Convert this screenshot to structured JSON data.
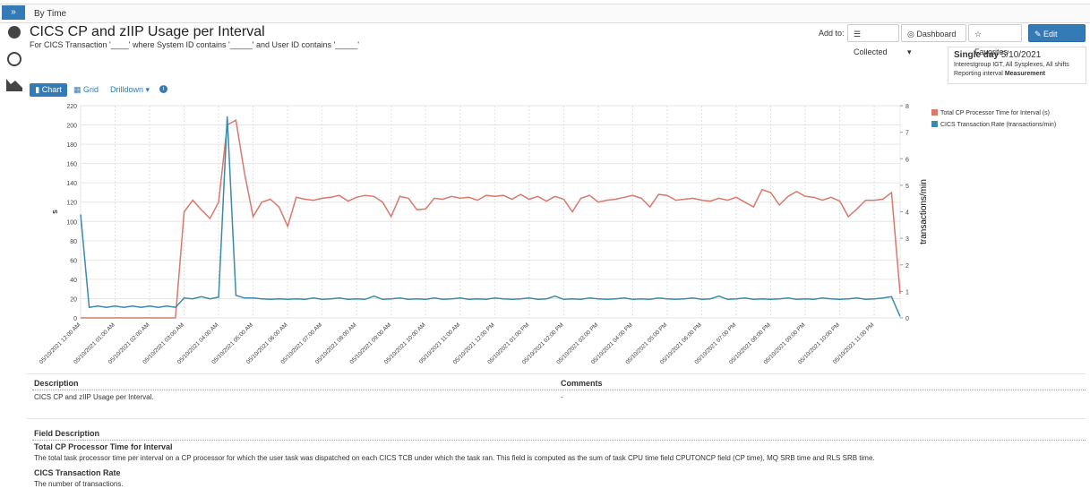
{
  "toolbar": {
    "toggle": "»",
    "title": "By Time"
  },
  "header": {
    "title": "CICS CP and zIIP Usage per Interval",
    "subtitle": "For CICS Transaction '____' where System ID contains '_____' and User ID contains '_____'"
  },
  "actions": {
    "label": "Add to:",
    "buttons": [
      "Collected",
      "Dashboard",
      "Favorites",
      "Edit report"
    ]
  },
  "info": {
    "period_label": "Single day",
    "period_value": "5/10/2021",
    "line1": "Interestgroup IGT, All Sysplexes, All shifts",
    "line2_label": "Reporting interval",
    "line2_value": "Measurement"
  },
  "tabs": [
    "Chart",
    "Grid",
    "Drilldown"
  ],
  "chart_data": {
    "type": "line",
    "categories": [
      "05/10/2021 12:00 AM",
      null,
      null,
      null,
      "05/10/2021 01:00 AM",
      null,
      null,
      null,
      "05/10/2021 02:00 AM",
      null,
      null,
      null,
      "05/10/2021 03:00 AM",
      null,
      null,
      null,
      "05/10/2021 04:00 AM",
      null,
      null,
      null,
      "05/10/2021 05:00 AM",
      null,
      null,
      null,
      "05/10/2021 06:00 AM",
      null,
      null,
      null,
      "05/10/2021 07:00 AM",
      null,
      null,
      null,
      "05/10/2021 08:00 AM",
      null,
      null,
      null,
      "05/10/2021 09:00 AM",
      null,
      null,
      null,
      "05/10/2021 10:00 AM",
      null,
      null,
      null,
      "05/10/2021 11:00 AM",
      null,
      null,
      null,
      "05/10/2021 12:00 PM",
      null,
      null,
      null,
      "05/10/2021 01:00 PM",
      null,
      null,
      null,
      "05/10/2021 02:00 PM",
      null,
      null,
      null,
      "05/10/2021 03:00 PM",
      null,
      null,
      null,
      "05/10/2021 04:00 PM",
      null,
      null,
      null,
      "05/10/2021 05:00 PM",
      null,
      null,
      null,
      "05/10/2021 06:00 PM",
      null,
      null,
      null,
      "05/10/2021 07:00 PM",
      null,
      null,
      null,
      "05/10/2021 08:00 PM",
      null,
      null,
      null,
      "05/10/2021 09:00 PM",
      null,
      null,
      null,
      "05/10/2021 10:00 PM",
      null,
      null,
      null,
      "05/10/2021 11:00 PM",
      null,
      null,
      null
    ],
    "series": [
      {
        "name": "Total CP Processor Time for Interval (s)",
        "color": "#d9786d",
        "values": [
          0,
          0,
          0,
          0,
          0,
          0,
          0,
          0,
          0,
          0,
          0,
          0,
          110,
          122,
          112,
          103,
          120,
          200,
          205,
          150,
          105,
          120,
          123,
          115,
          95,
          125,
          123,
          122,
          124,
          125,
          127,
          121,
          125,
          127,
          126,
          120,
          105,
          126,
          124,
          112,
          113,
          124,
          123,
          126,
          124,
          125,
          122,
          127,
          126,
          127,
          123,
          128,
          123,
          126,
          121,
          126,
          123,
          110,
          124,
          127,
          120,
          122,
          123,
          125,
          127,
          124,
          115,
          128,
          127,
          122,
          123,
          124,
          122,
          121,
          124,
          122,
          125,
          120,
          115,
          133,
          130,
          117,
          126,
          131,
          126,
          125,
          122,
          125,
          121,
          105,
          113,
          122,
          122,
          123,
          130,
          25
        ]
      },
      {
        "name": "CICS Transaction Rate (transactions/min)",
        "color": "#3b8aa8",
        "axis": "y2",
        "values": [
          3.9,
          0.4,
          0.45,
          0.4,
          0.45,
          0.4,
          0.45,
          0.4,
          0.45,
          0.4,
          0.45,
          0.4,
          0.75,
          0.72,
          0.8,
          0.72,
          0.78,
          7.6,
          0.85,
          0.75,
          0.75,
          0.72,
          0.7,
          0.72,
          0.7,
          0.72,
          0.7,
          0.75,
          0.7,
          0.72,
          0.75,
          0.7,
          0.72,
          0.7,
          0.82,
          0.7,
          0.72,
          0.75,
          0.7,
          0.72,
          0.7,
          0.75,
          0.7,
          0.72,
          0.75,
          0.7,
          0.72,
          0.7,
          0.75,
          0.72,
          0.7,
          0.72,
          0.75,
          0.7,
          0.72,
          0.82,
          0.7,
          0.72,
          0.7,
          0.75,
          0.72,
          0.7,
          0.72,
          0.75,
          0.7,
          0.72,
          0.7,
          0.75,
          0.72,
          0.7,
          0.72,
          0.75,
          0.7,
          0.72,
          0.82,
          0.7,
          0.72,
          0.75,
          0.7,
          0.72,
          0.7,
          0.72,
          0.75,
          0.7,
          0.72,
          0.7,
          0.75,
          0.72,
          0.7,
          0.72,
          0.75,
          0.7,
          0.72,
          0.75,
          0.8,
          0.05
        ]
      }
    ],
    "ylabel": "s",
    "y2label": "transactions/min",
    "ylim": [
      0,
      220
    ],
    "yticks": [
      0,
      20,
      40,
      60,
      80,
      100,
      120,
      140,
      160,
      180,
      200,
      220
    ],
    "y2lim": [
      0,
      8
    ],
    "y2ticks": [
      0,
      1,
      2,
      3,
      4,
      5,
      6,
      7,
      8
    ],
    "grid": true,
    "legend": "top-right"
  },
  "description": {
    "headers": [
      "Description",
      "Comments"
    ],
    "row": [
      "CICS CP and zIIP Usage per Interval.",
      "-"
    ]
  },
  "field_description": {
    "title": "Field Description",
    "fields": [
      {
        "name": "Total CP Processor Time for Interval",
        "text": "The total task processor time per interval on a CP processor for which the user task was dispatched on each CICS TCB under which the task ran. This field is computed as the sum of task CPU time field CPUTONCP field (CP time), MQ SRB time and RLS SRB time."
      },
      {
        "name": "CICS Transaction Rate",
        "text": "The number of transactions."
      }
    ]
  }
}
